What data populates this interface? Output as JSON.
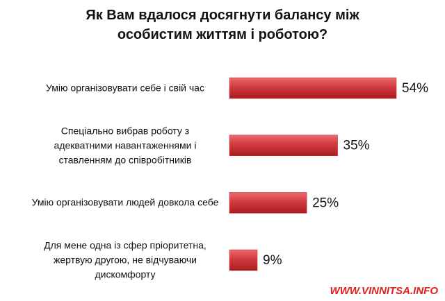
{
  "chart_data": {
    "type": "bar",
    "orientation": "horizontal",
    "title": "Як Вам вдалося досягнути балансу між особистим життям і роботою?",
    "categories": [
      "Умію організовувати себе і свій час",
      "Спеціально вибрав роботу з адекватними навантаженнями і ставленням до співробітників",
      "Умію організовувати людей довкола себе",
      "Для мене одна із сфер пріоритетна, жертвую другою, не відчуваючи дискомфорту"
    ],
    "values": [
      54,
      35,
      25,
      9
    ],
    "value_labels": [
      "54%",
      "35%",
      "25%",
      "9%"
    ],
    "color": "#c8262b",
    "watermark": "WWW.VINNITSA.INFO"
  }
}
